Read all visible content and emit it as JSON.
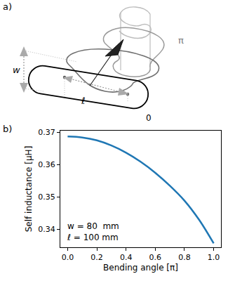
{
  "panel_labels": [
    "a)",
    "b)"
  ],
  "diagram": {
    "width_label": "w",
    "length_label": "ℓ",
    "angle_labels": [
      "0",
      "π"
    ]
  },
  "chart_data": {
    "type": "line",
    "x": [
      0.0,
      0.1,
      0.2,
      0.3,
      0.4,
      0.5,
      0.6,
      0.7,
      0.8,
      0.9,
      1.0
    ],
    "values": [
      0.3687,
      0.3684,
      0.3675,
      0.3659,
      0.3637,
      0.3609,
      0.3575,
      0.3535,
      0.3489,
      0.343,
      0.3357
    ],
    "color": "#1f77b4",
    "xlabel": "Bending angle [π]",
    "ylabel": "Self inductance [μH]",
    "annotations": [
      "w = 80  mm",
      "ℓ = 100 mm"
    ],
    "xlim": [
      -0.05,
      1.05
    ],
    "ylim": [
      0.3345,
      0.3705
    ],
    "xticks": [
      {
        "value": 0,
        "label": "0.0"
      },
      0.2,
      0.4,
      0.6,
      0.8,
      {
        "value": 1,
        "label": "1.0"
      }
    ],
    "yticks": [
      0.34,
      0.35,
      0.36,
      0.37
    ],
    "grid": false
  }
}
